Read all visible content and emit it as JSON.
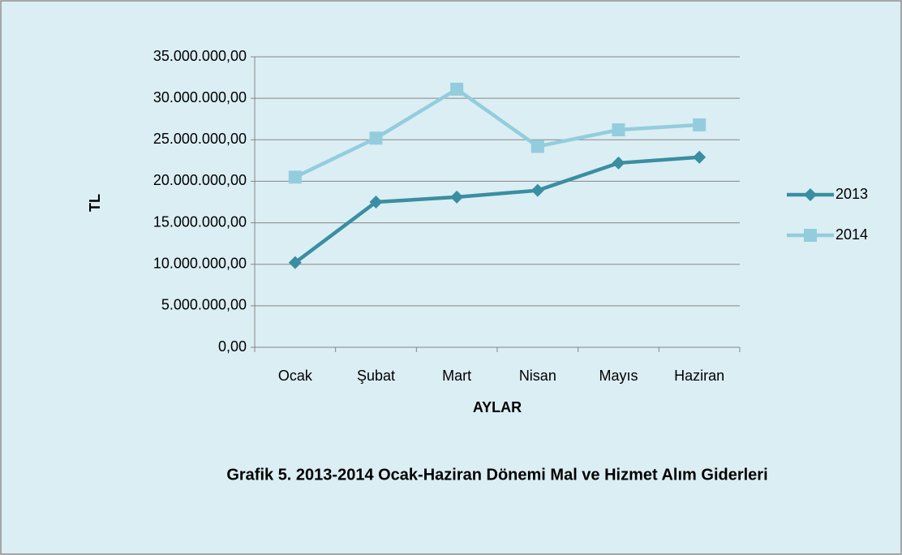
{
  "chart_data": {
    "type": "line",
    "title": "Grafik 5. 2013-2014 Ocak-Haziran Dönemi Mal ve Hizmet Alım Giderleri",
    "x_label": "AYLAR",
    "y_label": "TL",
    "categories": [
      "Ocak",
      "Şubat",
      "Mart",
      "Nisan",
      "Mayıs",
      "Haziran"
    ],
    "series": [
      {
        "name": "2013",
        "color": "#3a8ea2",
        "marker": "diamond",
        "values": [
          10200000,
          17500000,
          18100000,
          18900000,
          22200000,
          22900000
        ]
      },
      {
        "name": "2014",
        "color": "#93cddd",
        "marker": "square",
        "values": [
          20500000,
          25200000,
          31100000,
          24200000,
          26200000,
          26800000
        ]
      }
    ],
    "ylim": [
      0,
      35000000
    ],
    "yticks": [
      {
        "value": 0,
        "label": "0,00"
      },
      {
        "value": 5000000,
        "label": "5.000.000,00"
      },
      {
        "value": 10000000,
        "label": "10.000.000,00"
      },
      {
        "value": 15000000,
        "label": "15.000.000,00"
      },
      {
        "value": 20000000,
        "label": "20.000.000,00"
      },
      {
        "value": 25000000,
        "label": "25.000.000,00"
      },
      {
        "value": 30000000,
        "label": "30.000.000,00"
      },
      {
        "value": 35000000,
        "label": "35.000.000,00"
      }
    ],
    "grid": true,
    "legend": "right"
  }
}
